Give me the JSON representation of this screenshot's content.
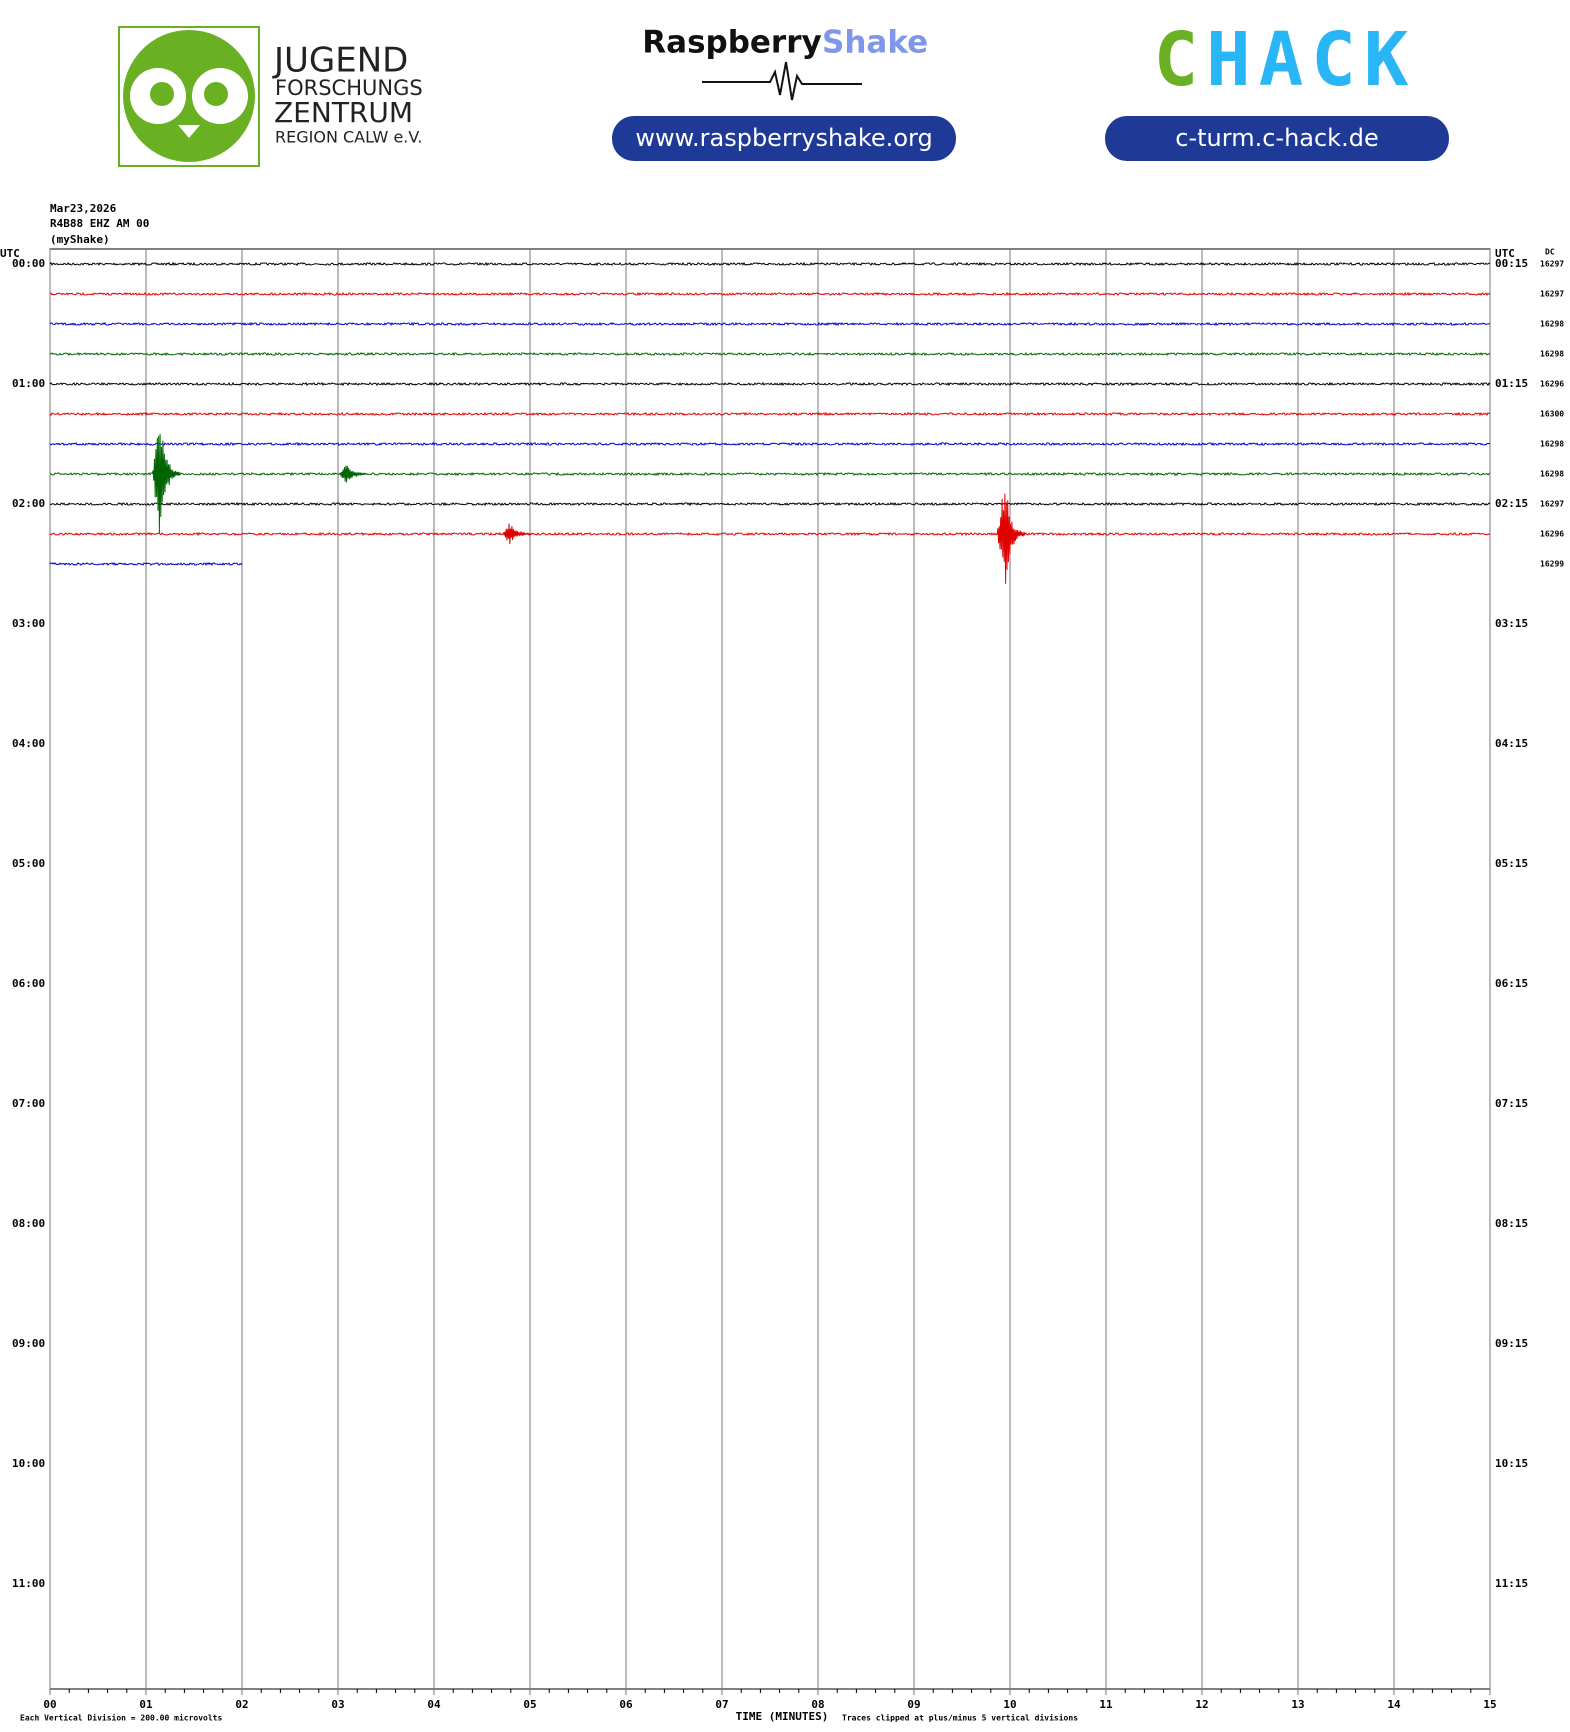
{
  "header": {
    "jfz": [
      "JUGEND",
      "FORSCHUNGS",
      "ZENTRUM",
      "REGION CALW e.V."
    ],
    "rs_title": "Raspberry",
    "rs_title2": "Shake",
    "rs_url": "www.raspberryshake.org",
    "chack": "CHACK",
    "chack_url": "c-turm.c-hack.de"
  },
  "chart_data": {
    "type": "helicorder",
    "info": [
      "Mar23,2026",
      "R4B88 EHZ AM 00",
      "(myShake)"
    ],
    "utc_left": "UTC",
    "utc_right": "UTC",
    "dc_label": "DC",
    "left_labels": [
      "00:00",
      "01:00",
      "02:00",
      "03:00",
      "04:00",
      "05:00",
      "06:00",
      "07:00",
      "08:00",
      "09:00",
      "10:00",
      "11:00"
    ],
    "right_labels": [
      "00:15",
      "01:15",
      "02:15",
      "03:15",
      "04:15",
      "05:15",
      "06:15",
      "07:15",
      "08:15",
      "09:15",
      "10:15",
      "11:15"
    ],
    "xticks": [
      {
        "value": 0,
        "label": "00"
      },
      {
        "value": 1,
        "label": "01"
      },
      {
        "value": 2,
        "label": "02"
      },
      {
        "value": 3,
        "label": "03"
      },
      {
        "value": 4,
        "label": "04"
      },
      {
        "value": 5,
        "label": "05"
      },
      {
        "value": 6,
        "label": "06"
      },
      {
        "value": 7,
        "label": "07"
      },
      {
        "value": 8,
        "label": "08"
      },
      {
        "value": 9,
        "label": "09"
      },
      10,
      11,
      12,
      13,
      14,
      15
    ],
    "xlim": [
      0,
      15
    ],
    "xlabel": "TIME (MINUTES)",
    "scale_note": "Each Vertical Division =  200.00 microvolts",
    "clip_note": "Traces clipped at plus/minus 5 vertical divisions",
    "rows": 48,
    "traces": [
      {
        "color": "#000000",
        "dc": "16297",
        "end": 15
      },
      {
        "color": "#e00000",
        "dc": "16297",
        "end": 15
      },
      {
        "color": "#0000c8",
        "dc": "16298",
        "end": 15
      },
      {
        "color": "#006400",
        "dc": "16298",
        "end": 15
      },
      {
        "color": "#000000",
        "dc": "16296",
        "end": 15
      },
      {
        "color": "#e00000",
        "dc": "16300",
        "end": 15
      },
      {
        "color": "#0000c8",
        "dc": "16298",
        "end": 15
      },
      {
        "color": "#006400",
        "dc": "16298",
        "end": 15
      },
      {
        "color": "#000000",
        "dc": "16297",
        "end": 15
      },
      {
        "color": "#e00000",
        "dc": "16296",
        "end": 15
      },
      {
        "color": "#0000c8",
        "dc": "16299",
        "end": 2
      }
    ],
    "events": [
      {
        "trace": 7,
        "minute": 1.15,
        "amplitude": 5
      },
      {
        "trace": 7,
        "minute": 3.1,
        "amplitude": 0.8
      },
      {
        "trace": 9,
        "minute": 4.8,
        "amplitude": 0.9
      },
      {
        "trace": 9,
        "minute": 9.95,
        "amplitude": 5
      }
    ]
  }
}
